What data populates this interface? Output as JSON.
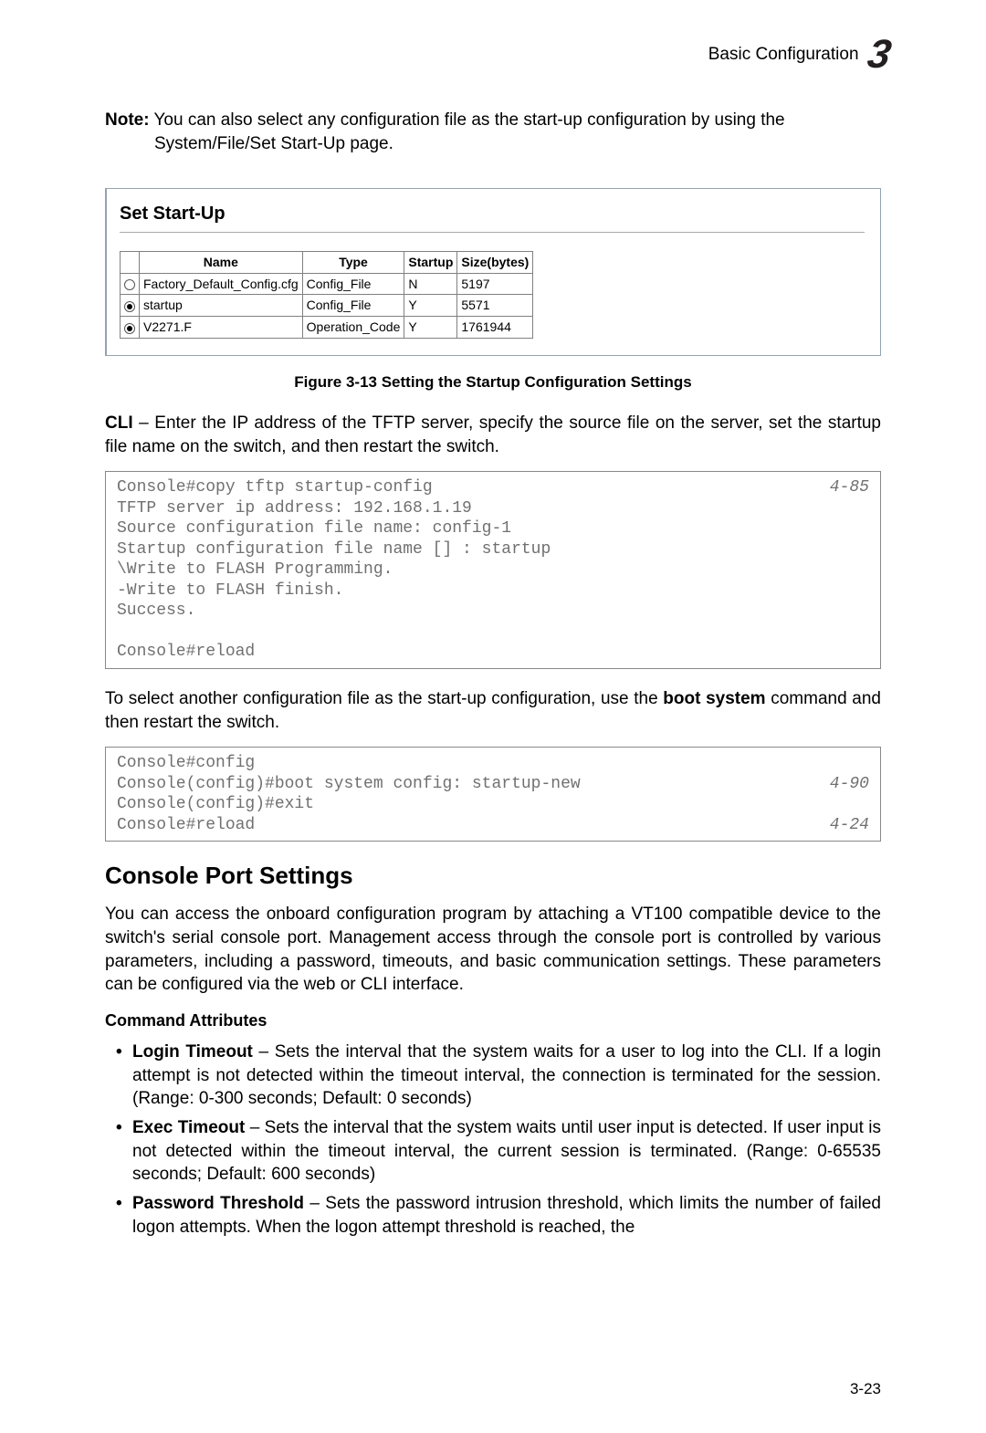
{
  "header": {
    "text": "Basic Configuration",
    "chapter": "3"
  },
  "note": {
    "label": "Note:",
    "line1": "You can also select any configuration file as the start-up configuration by using the",
    "line2": "System/File/Set Start-Up page."
  },
  "setStartUp": {
    "title": "Set Start-Up",
    "columns": [
      "Name",
      "Type",
      "Startup",
      "Size(bytes)"
    ],
    "rows": [
      {
        "selected": false,
        "name": "Factory_Default_Config.cfg",
        "type": "Config_File",
        "startup": "N",
        "size": "5197"
      },
      {
        "selected": true,
        "name": "startup",
        "type": "Config_File",
        "startup": "Y",
        "size": "5571"
      },
      {
        "selected": true,
        "name": "V2271.F",
        "type": "Operation_Code",
        "startup": "Y",
        "size": "1761944"
      }
    ]
  },
  "figureCaption": "Figure 3-13  Setting the Startup Configuration Settings",
  "cliIntro": {
    "label": "CLI",
    "text": " – Enter the IP address of the TFTP server, specify the source file on the server, set the startup file name on the switch, and then restart the switch."
  },
  "cliBox1": {
    "lines": [
      {
        "text": "Console#copy tftp startup-config",
        "ref": "4-85"
      },
      {
        "text": "TFTP server ip address: 192.168.1.19",
        "ref": ""
      },
      {
        "text": "Source configuration file name: config-1",
        "ref": ""
      },
      {
        "text": "Startup configuration file name [] : startup",
        "ref": ""
      },
      {
        "text": "\\Write to FLASH Programming.",
        "ref": ""
      },
      {
        "text": "-Write to FLASH finish.",
        "ref": ""
      },
      {
        "text": "Success.",
        "ref": ""
      },
      {
        "text": "",
        "ref": ""
      },
      {
        "text": "Console#reload",
        "ref": ""
      }
    ]
  },
  "para2": {
    "pre": "To select another configuration file as the start-up configuration, use the ",
    "bold": "boot system",
    "post": " command and then restart the switch."
  },
  "cliBox2": {
    "lines": [
      {
        "text": "Console#config",
        "ref": ""
      },
      {
        "text": "Console(config)#boot system config: startup-new",
        "ref": "4-90"
      },
      {
        "text": "Console(config)#exit",
        "ref": ""
      },
      {
        "text": "Console#reload",
        "ref": "4-24"
      }
    ]
  },
  "section": {
    "heading": "Console Port Settings",
    "para": "You can access the onboard configuration program by attaching a VT100 compatible device to the switch's serial console port. Management access through the console port is controlled by various parameters, including a password, timeouts, and basic communication settings. These parameters can be configured via the web or CLI interface.",
    "sub": "Command Attributes",
    "bullets": [
      {
        "bold": "Login Timeout",
        "text": " – Sets the interval that the system waits for a user to log into the CLI. If a login attempt is not detected within the timeout interval, the connection is terminated for the session. (Range: 0-300 seconds; Default: 0 seconds)"
      },
      {
        "bold": "Exec Timeout",
        "text": " – Sets the interval that the system waits until user input is detected. If user input is not detected within the timeout interval, the current session is terminated. (Range: 0-65535 seconds; Default: 600 seconds)"
      },
      {
        "bold": "Password Threshold",
        "text": " – Sets the password intrusion threshold, which limits the number of failed logon attempts. When the logon attempt threshold is reached, the"
      }
    ]
  },
  "pageNumber": "3-23"
}
